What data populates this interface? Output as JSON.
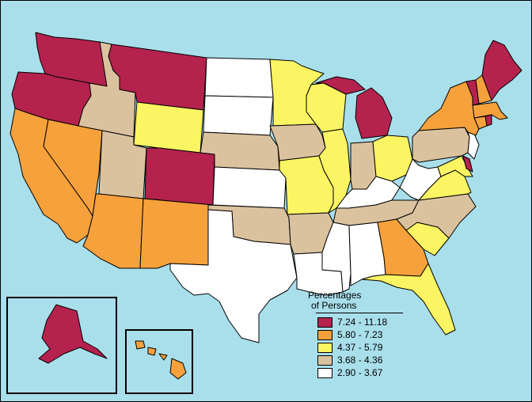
{
  "legend": {
    "title_line1": "Percentages",
    "title_line2": "of Persons",
    "classes": [
      {
        "label": "7.24 - 11.18",
        "color": "#b5224e"
      },
      {
        "label": "5.80 - 7.23",
        "color": "#f7a13c"
      },
      {
        "label": "4.37 - 5.79",
        "color": "#fbf463"
      },
      {
        "label": "3.68 - 4.36",
        "color": "#dbc29f"
      },
      {
        "label": "2.90 - 3.67",
        "color": "#ffffff"
      }
    ]
  },
  "states": [
    {
      "id": "WA",
      "class": 0
    },
    {
      "id": "OR",
      "class": 0
    },
    {
      "id": "MT",
      "class": 0
    },
    {
      "id": "CO",
      "class": 0
    },
    {
      "id": "MI",
      "class": 0
    },
    {
      "id": "ME",
      "class": 0
    },
    {
      "id": "VT",
      "class": 0
    },
    {
      "id": "RI",
      "class": 0
    },
    {
      "id": "DE",
      "class": 0
    },
    {
      "id": "AK",
      "class": 0
    },
    {
      "id": "CA",
      "class": 1
    },
    {
      "id": "NV",
      "class": 1
    },
    {
      "id": "AZ",
      "class": 1
    },
    {
      "id": "NM",
      "class": 1
    },
    {
      "id": "GA",
      "class": 1
    },
    {
      "id": "NY",
      "class": 1
    },
    {
      "id": "NH",
      "class": 1
    },
    {
      "id": "MA",
      "class": 1
    },
    {
      "id": "CT",
      "class": 1
    },
    {
      "id": "HI",
      "class": 1
    },
    {
      "id": "WY",
      "class": 2
    },
    {
      "id": "MN",
      "class": 2
    },
    {
      "id": "WI",
      "class": 2
    },
    {
      "id": "IL",
      "class": 2
    },
    {
      "id": "MO",
      "class": 2
    },
    {
      "id": "OH",
      "class": 2
    },
    {
      "id": "VA",
      "class": 2
    },
    {
      "id": "SC",
      "class": 2
    },
    {
      "id": "FL",
      "class": 2
    },
    {
      "id": "MD",
      "class": 2
    },
    {
      "id": "ID",
      "class": 3
    },
    {
      "id": "UT",
      "class": 3
    },
    {
      "id": "NE",
      "class": 3
    },
    {
      "id": "IA",
      "class": 3
    },
    {
      "id": "OK",
      "class": 3
    },
    {
      "id": "AR",
      "class": 3
    },
    {
      "id": "IN",
      "class": 3
    },
    {
      "id": "TN",
      "class": 3
    },
    {
      "id": "NC",
      "class": 3
    },
    {
      "id": "PA",
      "class": 3
    },
    {
      "id": "ND",
      "class": 4
    },
    {
      "id": "SD",
      "class": 4
    },
    {
      "id": "KS",
      "class": 4
    },
    {
      "id": "TX",
      "class": 4
    },
    {
      "id": "LA",
      "class": 4
    },
    {
      "id": "MS",
      "class": 4
    },
    {
      "id": "AL",
      "class": 4
    },
    {
      "id": "KY",
      "class": 4
    },
    {
      "id": "WV",
      "class": 4
    },
    {
      "id": "NJ",
      "class": 4
    }
  ]
}
